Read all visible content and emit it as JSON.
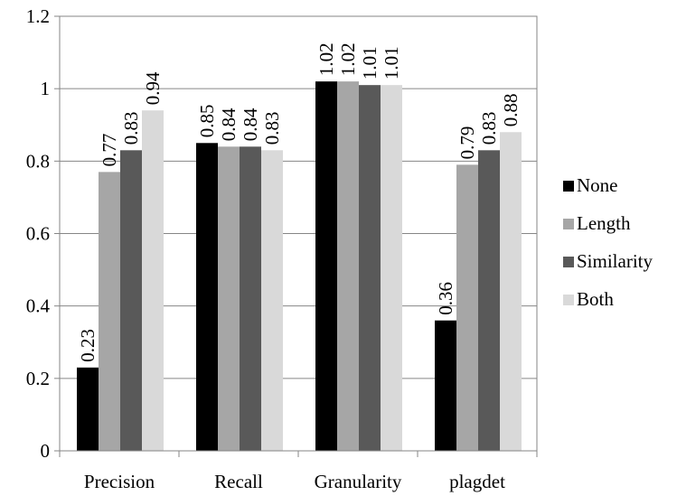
{
  "chart_data": {
    "type": "bar",
    "categories": [
      "Precision",
      "Recall",
      "Granularity",
      "plagdet"
    ],
    "series": [
      {
        "name": "None",
        "color": "#000000",
        "values": [
          0.23,
          0.85,
          1.02,
          0.36
        ]
      },
      {
        "name": "Length",
        "color": "#a6a6a6",
        "values": [
          0.77,
          0.84,
          1.02,
          0.79
        ]
      },
      {
        "name": "Similarity",
        "color": "#595959",
        "values": [
          0.83,
          0.84,
          1.01,
          0.83
        ]
      },
      {
        "name": "Both",
        "color": "#d9d9d9",
        "values": [
          0.94,
          0.83,
          1.01,
          0.88
        ]
      }
    ],
    "data_labels": [
      [
        "0.23",
        "0.85",
        "1.02",
        "0.36"
      ],
      [
        "0.77",
        "0.84",
        "1.02",
        "0.79"
      ],
      [
        "0.83",
        "0.84",
        "1.01",
        "0.83"
      ],
      [
        "0.94",
        "0.83",
        "1.01",
        "0.88"
      ]
    ],
    "yticks": [
      "0",
      "0.2",
      "0.4",
      "0.6",
      "0.8",
      "1",
      "1.2"
    ],
    "ylim": [
      0,
      1.2
    ],
    "grid": true,
    "legend_position": "right"
  }
}
